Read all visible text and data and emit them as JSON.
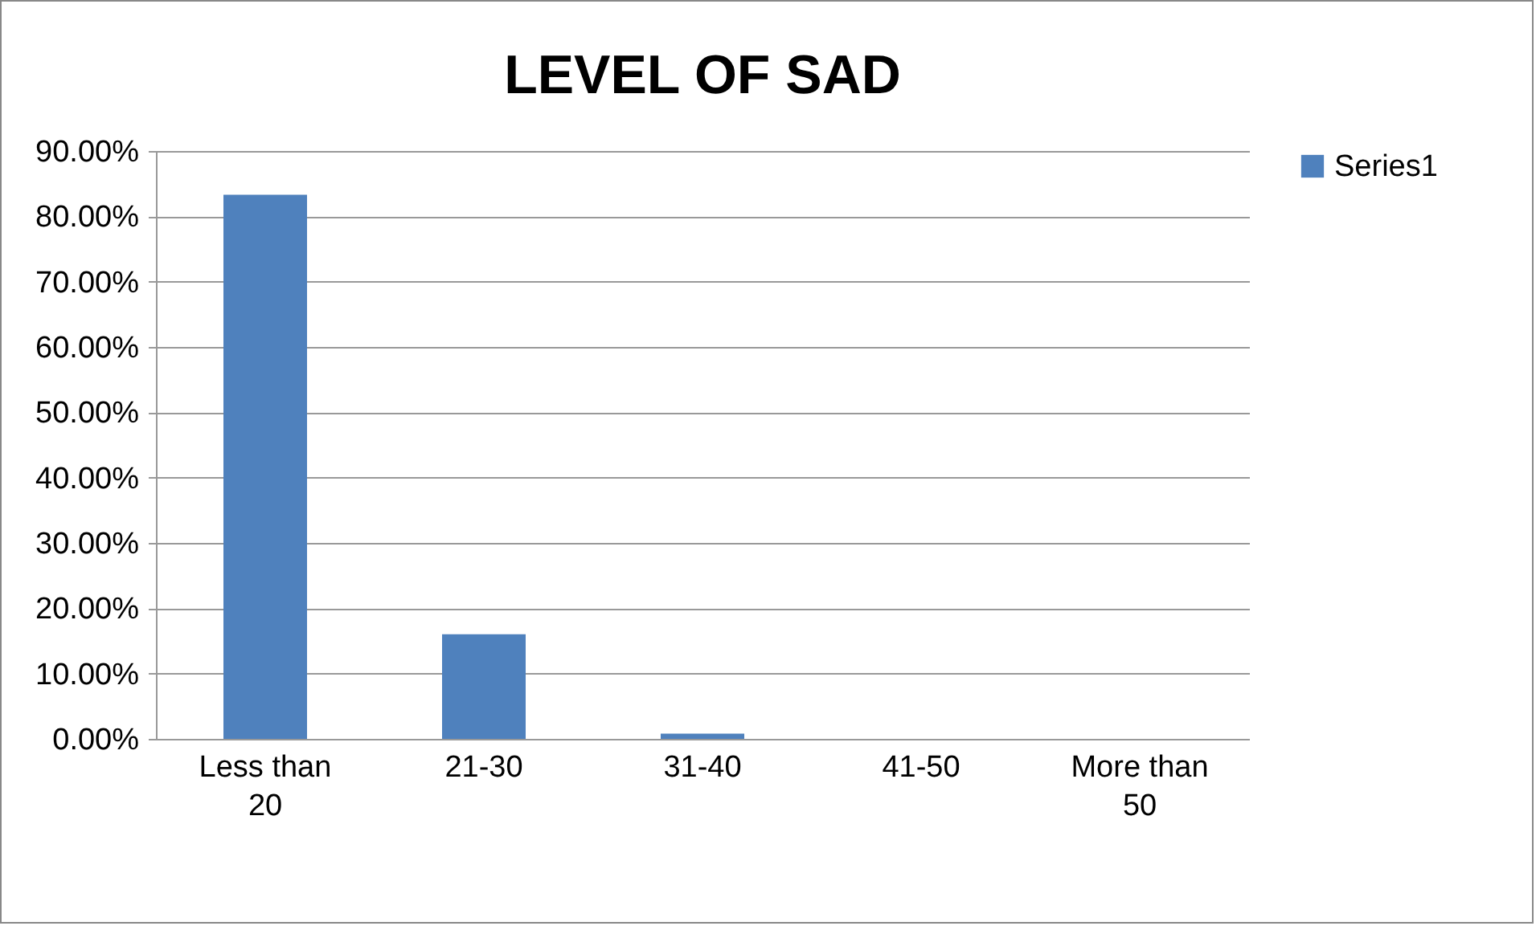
{
  "chart_data": {
    "type": "bar",
    "title": "LEVEL OF SAD",
    "categories": [
      "Less than 20",
      "21-30",
      "31-40",
      "41-50",
      "More than 50"
    ],
    "series": [
      {
        "name": "Series1",
        "color": "#4f81bd",
        "values": [
          83.3,
          16.0,
          0.8,
          0,
          0
        ]
      }
    ],
    "ylim": [
      0,
      90
    ],
    "yticks": [
      {
        "value": 0,
        "label": "0.00%"
      },
      {
        "value": 10,
        "label": "10.00%"
      },
      {
        "value": 20,
        "label": "20.00%"
      },
      {
        "value": 30,
        "label": "30.00%"
      },
      {
        "value": 40,
        "label": "40.00%"
      },
      {
        "value": 50,
        "label": "50.00%"
      },
      {
        "value": 60,
        "label": "60.00%"
      },
      {
        "value": 70,
        "label": "70.00%"
      },
      {
        "value": 80,
        "label": "80.00%"
      },
      {
        "value": 90,
        "label": "90.00%"
      }
    ],
    "grid": "y",
    "legend": "right"
  }
}
